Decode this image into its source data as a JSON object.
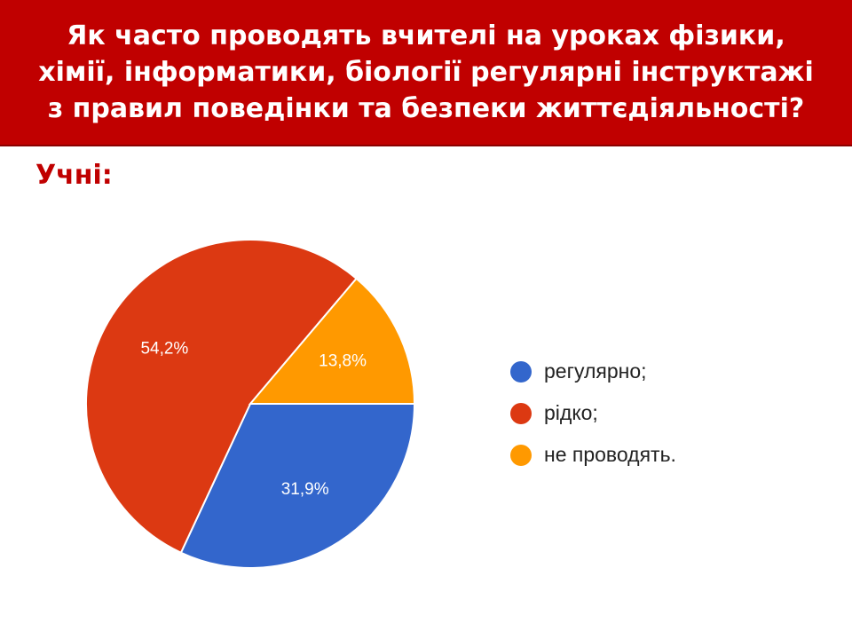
{
  "header": {
    "title": "Як часто проводять вчителі на уроках фізики, хімії, інформатики, біології регулярні інструктажі з правил поведінки та безпеки життєдіяльності?"
  },
  "subtitle": "Учні:",
  "chart_data": {
    "type": "pie",
    "categories": [
      "регулярно;",
      "рідко;",
      "не проводять."
    ],
    "values": [
      31.9,
      54.2,
      13.8
    ],
    "labels": [
      "31,9%",
      "54,2%",
      "13,8%"
    ],
    "colors": [
      "#3366cc",
      "#dc3912",
      "#ff9900"
    ],
    "legend": "right"
  }
}
